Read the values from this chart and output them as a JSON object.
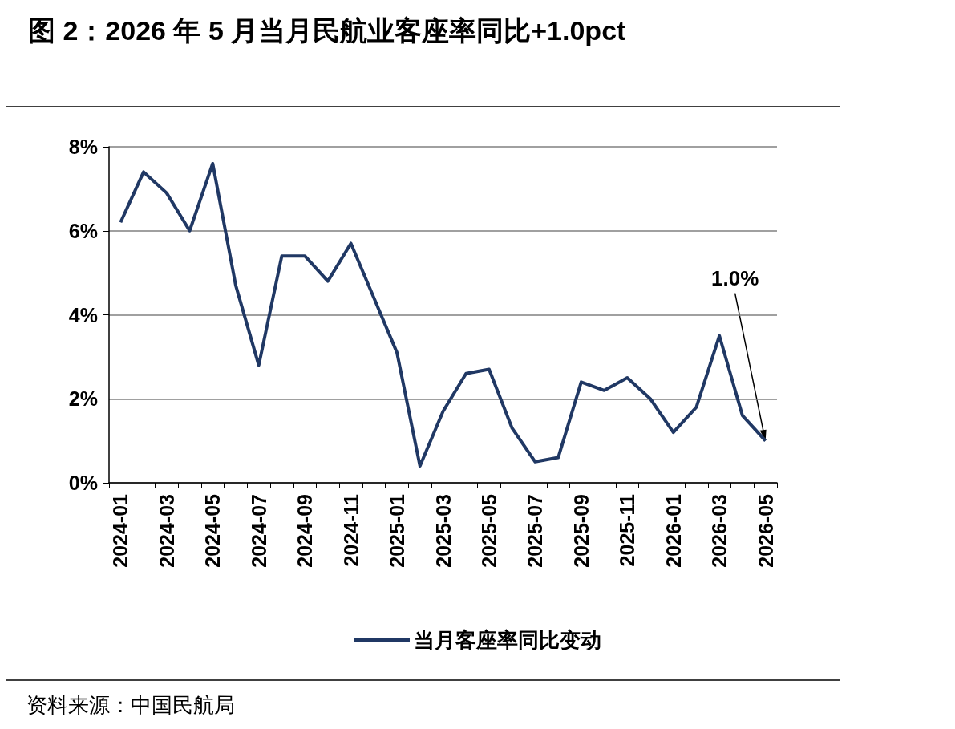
{
  "chart_data": {
    "type": "line",
    "title": "图 2：2026 年 5 月当月民航业客座率同比+1.0pct",
    "categories": [
      "2024-01",
      null,
      "2024-03",
      null,
      "2024-05",
      null,
      "2024-07",
      null,
      "2024-09",
      null,
      "2024-11",
      null,
      "2025-01",
      null,
      "2025-03",
      null,
      "2025-05",
      null,
      "2025-07",
      null,
      "2025-09",
      null,
      "2025-11",
      null,
      "2026-01",
      null,
      "2026-03",
      null,
      "2026-05"
    ],
    "series": [
      {
        "name": "当月客座率同比变动",
        "color": "#203864",
        "values": [
          6.2,
          7.4,
          6.9,
          6.0,
          7.6,
          4.7,
          2.8,
          5.4,
          5.4,
          4.8,
          5.7,
          4.4,
          3.1,
          0.4,
          1.7,
          2.6,
          2.7,
          1.3,
          0.5,
          0.6,
          2.4,
          2.2,
          2.5,
          2.0,
          1.2,
          1.8,
          3.5,
          1.6,
          1.0
        ]
      }
    ],
    "ylim": [
      0,
      8
    ],
    "yticks": [
      {
        "value": 0,
        "label": "0%"
      },
      {
        "value": 2,
        "label": "2%"
      },
      {
        "value": 4,
        "label": "4%"
      },
      {
        "value": 6,
        "label": "6%"
      },
      {
        "value": 8,
        "label": "8%"
      }
    ],
    "grid": "y",
    "legend": "bottom",
    "annotations": [
      {
        "text": "1.0%",
        "x": "2026-05",
        "y": 1.0
      },
      "资料来源：中国民航局"
    ]
  }
}
